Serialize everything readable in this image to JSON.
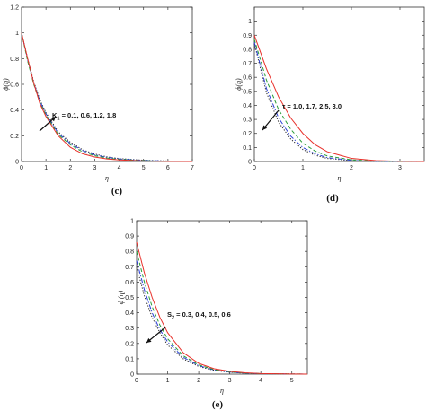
{
  "chart_data": [
    {
      "type": "line",
      "panel_label": "(c)",
      "xlabel": "η",
      "ylabel": "ϕ(η)",
      "xlim": [
        0,
        7
      ],
      "ylim": [
        0,
        1.2
      ],
      "xticks": [
        0,
        1,
        2,
        3,
        4,
        5,
        6,
        7
      ],
      "yticks": [
        0,
        0.2,
        0.4,
        0.6,
        0.8,
        1,
        1.2
      ],
      "annotation": "K₁ = 0.1, 0.6, 1.2, 1.8",
      "annotation_parts": {
        "sym": "K",
        "sub": "1",
        "rest": " = 0.1, 0.6, 1.2, 1.8"
      },
      "arrow_direction": "up-right",
      "series": [
        {
          "color": "#e8302a",
          "dash": "solid",
          "x": [
            0,
            0.25,
            0.5,
            0.75,
            1,
            1.5,
            2,
            2.5,
            3,
            3.5,
            4,
            5,
            6,
            7
          ],
          "y": [
            1.0,
            0.8,
            0.61,
            0.45,
            0.35,
            0.2,
            0.11,
            0.06,
            0.035,
            0.02,
            0.012,
            0.004,
            0.001,
            0.0
          ]
        },
        {
          "color": "#2a9d3a",
          "dash": "dashed",
          "x": [
            0,
            0.25,
            0.5,
            0.75,
            1,
            1.5,
            2,
            2.5,
            3,
            3.5,
            4,
            5,
            6,
            7
          ],
          "y": [
            1.0,
            0.78,
            0.6,
            0.46,
            0.36,
            0.21,
            0.13,
            0.075,
            0.045,
            0.027,
            0.016,
            0.006,
            0.002,
            0.0
          ]
        },
        {
          "color": "#2b3fd6",
          "dash": "dashdot",
          "x": [
            0,
            0.25,
            0.5,
            0.75,
            1,
            1.5,
            2,
            2.5,
            3,
            3.5,
            4,
            5,
            6,
            7
          ],
          "y": [
            1.0,
            0.79,
            0.61,
            0.47,
            0.37,
            0.22,
            0.14,
            0.085,
            0.052,
            0.032,
            0.02,
            0.008,
            0.003,
            0.0
          ]
        },
        {
          "color": "#222222",
          "dash": "dotted",
          "x": [
            0,
            0.25,
            0.5,
            0.75,
            1,
            1.5,
            2,
            2.5,
            3,
            3.5,
            4,
            5,
            6,
            7
          ],
          "y": [
            1.0,
            0.8,
            0.62,
            0.48,
            0.38,
            0.23,
            0.15,
            0.092,
            0.058,
            0.036,
            0.023,
            0.01,
            0.004,
            0.0
          ]
        }
      ]
    },
    {
      "type": "line",
      "panel_label": "(d)",
      "xlabel": "η",
      "ylabel": "ϕ(η)",
      "xlim": [
        0,
        3.5
      ],
      "ylim": [
        0,
        1.1
      ],
      "xticks": [
        0,
        1,
        2,
        3
      ],
      "yticks": [
        0,
        0.1,
        0.2,
        0.3,
        0.4,
        0.5,
        0.6,
        0.7,
        0.8,
        0.9,
        1
      ],
      "annotation": "τ = 1.0, 1.7, 2.5, 3.0",
      "arrow_direction": "down-left",
      "series": [
        {
          "color": "#e8302a",
          "dash": "solid",
          "x": [
            0,
            0.25,
            0.5,
            0.75,
            1,
            1.25,
            1.5,
            2,
            2.5,
            3,
            3.5
          ],
          "y": [
            0.9,
            0.66,
            0.46,
            0.31,
            0.2,
            0.12,
            0.07,
            0.022,
            0.006,
            0.002,
            0.0
          ]
        },
        {
          "color": "#2a9d3a",
          "dash": "dashed",
          "x": [
            0,
            0.25,
            0.5,
            0.75,
            1,
            1.25,
            1.5,
            2,
            2.5,
            3,
            3.5
          ],
          "y": [
            0.87,
            0.58,
            0.37,
            0.23,
            0.13,
            0.075,
            0.04,
            0.012,
            0.003,
            0.001,
            0.0
          ]
        },
        {
          "color": "#2b3fd6",
          "dash": "dashdot",
          "x": [
            0,
            0.25,
            0.5,
            0.75,
            1,
            1.25,
            1.5,
            2,
            2.5,
            3,
            3.5
          ],
          "y": [
            0.85,
            0.52,
            0.31,
            0.18,
            0.1,
            0.055,
            0.028,
            0.008,
            0.002,
            0.0,
            0.0
          ]
        },
        {
          "color": "#222222",
          "dash": "dotted",
          "x": [
            0,
            0.25,
            0.5,
            0.75,
            1,
            1.25,
            1.5,
            2,
            2.5,
            3,
            3.5
          ],
          "y": [
            0.84,
            0.49,
            0.28,
            0.16,
            0.085,
            0.045,
            0.022,
            0.006,
            0.001,
            0.0,
            0.0
          ]
        }
      ]
    },
    {
      "type": "line",
      "panel_label": "(e)",
      "xlabel": "η",
      "ylabel": "ϕ (η)",
      "xlim": [
        0,
        5.5
      ],
      "ylim": [
        0,
        1.0
      ],
      "xticks": [
        0,
        1,
        2,
        3,
        4,
        5
      ],
      "yticks": [
        0,
        0.1,
        0.2,
        0.3,
        0.4,
        0.5,
        0.6,
        0.7,
        0.8,
        0.9,
        1
      ],
      "annotation": "S₂ = 0.3, 0.4, 0.5, 0.6",
      "annotation_parts": {
        "sym": "S",
        "sub": "2",
        "rest": " = 0.3, 0.4, 0.5, 0.6"
      },
      "arrow_direction": "down-left",
      "series": [
        {
          "color": "#e8302a",
          "dash": "solid",
          "x": [
            0,
            0.25,
            0.5,
            0.75,
            1,
            1.5,
            2,
            2.5,
            3,
            3.5,
            4,
            5,
            5.5
          ],
          "y": [
            0.86,
            0.66,
            0.5,
            0.37,
            0.27,
            0.14,
            0.07,
            0.035,
            0.018,
            0.009,
            0.004,
            0.001,
            0.0
          ]
        },
        {
          "color": "#2a9d3a",
          "dash": "dashed",
          "x": [
            0,
            0.25,
            0.5,
            0.75,
            1,
            1.5,
            2,
            2.5,
            3,
            3.5,
            4,
            5,
            5.5
          ],
          "y": [
            0.8,
            0.6,
            0.44,
            0.32,
            0.23,
            0.12,
            0.06,
            0.03,
            0.015,
            0.007,
            0.003,
            0.001,
            0.0
          ]
        },
        {
          "color": "#2b3fd6",
          "dash": "dashdot",
          "x": [
            0,
            0.25,
            0.5,
            0.75,
            1,
            1.5,
            2,
            2.5,
            3,
            3.5,
            4,
            5,
            5.5
          ],
          "y": [
            0.74,
            0.55,
            0.4,
            0.29,
            0.21,
            0.11,
            0.055,
            0.027,
            0.013,
            0.006,
            0.003,
            0.001,
            0.0
          ]
        },
        {
          "color": "#222222",
          "dash": "dotted",
          "x": [
            0,
            0.25,
            0.5,
            0.75,
            1,
            1.5,
            2,
            2.5,
            3,
            3.5,
            4,
            5,
            5.5
          ],
          "y": [
            0.7,
            0.51,
            0.37,
            0.27,
            0.19,
            0.1,
            0.05,
            0.025,
            0.012,
            0.006,
            0.003,
            0.001,
            0.0
          ]
        }
      ]
    }
  ]
}
